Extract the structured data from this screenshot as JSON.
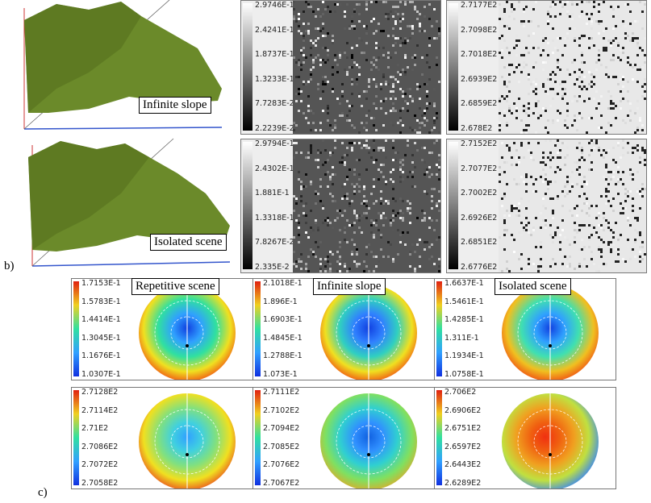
{
  "figure_b": {
    "label": "b)",
    "terrain_captions": [
      "Infinite slope",
      "Isolated scene"
    ],
    "colorbars": [
      [
        "2.9746E-1",
        "2.4241E-1",
        "1.8737E-1",
        "1.3233E-1",
        "7.7283E-2",
        "2.2239E-2"
      ],
      [
        "2.7177E2",
        "2.7098E2",
        "2.7018E2",
        "2.6939E2",
        "2.6859E2",
        "2.678E2"
      ],
      [
        "2.9794E-1",
        "2.4302E-1",
        "1.881E-1",
        "1.3318E-1",
        "7.8267E-2",
        "2.335E-2"
      ],
      [
        "2.7152E2",
        "2.7077E2",
        "2.7002E2",
        "2.6926E2",
        "2.6851E2",
        "2.6776E2"
      ]
    ]
  },
  "figure_c": {
    "label": "c)",
    "titles": [
      "Repetitive scene",
      "Infinite slope",
      "Isolated scene"
    ],
    "colorbars": [
      [
        "1.7153E-1",
        "1.5783E-1",
        "1.4414E-1",
        "1.3045E-1",
        "1.1676E-1",
        "1.0307E-1"
      ],
      [
        "2.1018E-1",
        "1.896E-1",
        "1.6903E-1",
        "1.4845E-1",
        "1.2788E-1",
        "1.073E-1"
      ],
      [
        "1.6637E-1",
        "1.5461E-1",
        "1.4285E-1",
        "1.311E-1",
        "1.1934E-1",
        "1.0758E-1"
      ],
      [
        "2.7128E2",
        "2.7114E2",
        "2.71E2",
        "2.7086E2",
        "2.7072E2",
        "2.7058E2"
      ],
      [
        "2.7111E2",
        "2.7102E2",
        "2.7094E2",
        "2.7085E2",
        "2.7076E2",
        "2.7067E2"
      ],
      [
        "2.706E2",
        "2.6906E2",
        "2.6751E2",
        "2.6597E2",
        "2.6443E2",
        "2.6289E2"
      ]
    ]
  }
}
